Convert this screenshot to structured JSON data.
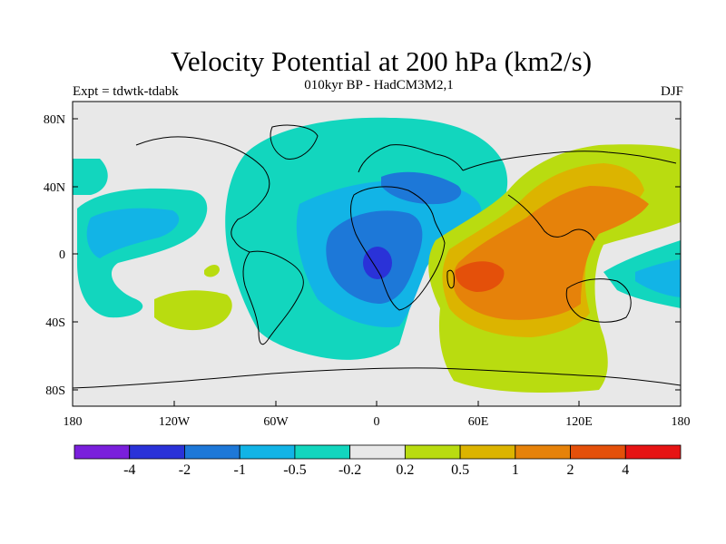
{
  "title": "Velocity Potential at 200 hPa (km2/s)",
  "subtitle": "010kyr BP - HadCM3M2,1",
  "expt": "Expt = tdwtk-tdabk",
  "season": "DJF",
  "map": {
    "lat_ticks": [
      "80N",
      "40N",
      "0",
      "40S",
      "80S"
    ],
    "lon_ticks": [
      "180",
      "120W",
      "60W",
      "0",
      "60E",
      "120E",
      "180"
    ]
  },
  "colorbar": {
    "colors": [
      "#7a1fdc",
      "#2a32d8",
      "#1d78d8",
      "#12b4e6",
      "#12d6be",
      "#e8e8e8",
      "#b9dc10",
      "#dcb400",
      "#e6820a",
      "#e4500a",
      "#e61414"
    ],
    "labels": [
      "-4",
      "-2",
      "-1",
      "-0.5",
      "-0.2",
      "0.2",
      "0.5",
      "1",
      "2",
      "4"
    ]
  },
  "colors": {
    "neutral": "#e8e8e8",
    "neg_02": "#12d6be",
    "neg_05": "#12b4e6",
    "neg_1": "#1d78d8",
    "neg_2": "#2a32d8",
    "pos_02": "#b9dc10",
    "pos_05": "#dcb400",
    "pos_1": "#e6820a",
    "pos_2": "#e4500a"
  }
}
